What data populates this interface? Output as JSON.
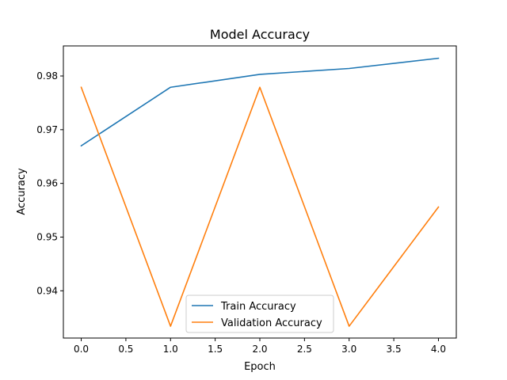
{
  "chart_data": {
    "type": "line",
    "title": "Model Accuracy",
    "xlabel": "Epoch",
    "ylabel": "Accuracy",
    "x": [
      0,
      1,
      2,
      3,
      4
    ],
    "xlim": [
      -0.2,
      4.2
    ],
    "ylim": [
      0.9312,
      0.9856
    ],
    "xticks": [
      0.0,
      0.5,
      1.0,
      1.5,
      2.0,
      2.5,
      3.0,
      3.5,
      4.0
    ],
    "xtick_labels": [
      "0.0",
      "0.5",
      "1.0",
      "1.5",
      "2.0",
      "2.5",
      "3.0",
      "3.5",
      "4.0"
    ],
    "yticks": [
      0.94,
      0.95,
      0.96,
      0.97,
      0.98
    ],
    "ytick_labels": [
      "0.94",
      "0.95",
      "0.96",
      "0.97",
      "0.98"
    ],
    "grid": false,
    "legend_position": "lower center",
    "series": [
      {
        "name": "Train Accuracy",
        "color": "#1f77b4",
        "values": [
          0.967,
          0.9779,
          0.9803,
          0.9814,
          0.9833
        ]
      },
      {
        "name": "Validation Accuracy",
        "color": "#ff7f0e",
        "values": [
          0.9779,
          0.9334,
          0.9779,
          0.9334,
          0.9556
        ]
      }
    ]
  }
}
